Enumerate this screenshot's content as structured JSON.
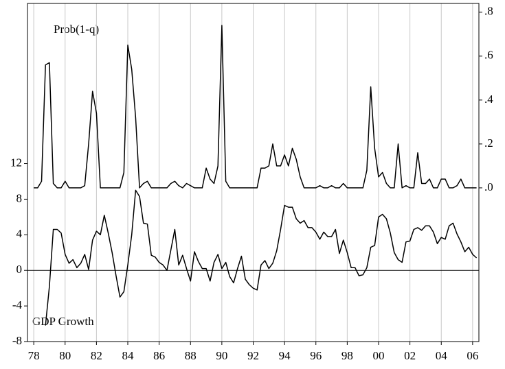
{
  "chart_data": {
    "type": "line",
    "annotations": [
      "Prob(1-q)",
      "GDP Growth"
    ],
    "x": [
      1978,
      1978.25,
      1978.5,
      1978.75,
      1979,
      1979.25,
      1979.5,
      1979.75,
      1980,
      1980.25,
      1980.5,
      1980.75,
      1981,
      1981.25,
      1981.5,
      1981.75,
      1982,
      1982.25,
      1982.5,
      1982.75,
      1983,
      1983.25,
      1983.5,
      1983.75,
      1984,
      1984.25,
      1984.5,
      1984.75,
      1985,
      1985.25,
      1985.5,
      1985.75,
      1986,
      1986.25,
      1986.5,
      1986.75,
      1987,
      1987.25,
      1987.5,
      1987.75,
      1988,
      1988.25,
      1988.5,
      1988.75,
      1989,
      1989.25,
      1989.5,
      1989.75,
      1990,
      1990.25,
      1990.5,
      1990.75,
      1991,
      1991.25,
      1991.5,
      1991.75,
      1992,
      1992.25,
      1992.5,
      1992.75,
      1993,
      1993.25,
      1993.5,
      1993.75,
      1994,
      1994.25,
      1994.5,
      1994.75,
      1995,
      1995.25,
      1995.5,
      1995.75,
      1996,
      1996.25,
      1996.5,
      1996.75,
      1997,
      1997.25,
      1997.5,
      1997.75,
      1998,
      1998.25,
      1998.5,
      1998.75,
      1999,
      1999.25,
      1999.5,
      1999.75,
      2000,
      2000.25,
      2000.5,
      2000.75,
      2001,
      2001.25,
      2001.5,
      2001.75,
      2002,
      2002.25,
      2002.5,
      2002.75,
      2003,
      2003.25,
      2003.5,
      2003.75,
      2004,
      2004.25,
      2004.5,
      2004.75,
      2005,
      2005.25,
      2005.5,
      2005.75,
      2006,
      2006.25
    ],
    "series": [
      {
        "color": "#000000",
        "axis": "y",
        "values": [
          null,
          null,
          null,
          -6.2,
          -1.8,
          4.6,
          4.6,
          4.2,
          1.8,
          0.8,
          1.2,
          0.3,
          0.8,
          1.8,
          0.1,
          3.4,
          4.4,
          4.0,
          6.2,
          4.2,
          2.0,
          -0.6,
          -3.0,
          -2.4,
          0.6,
          4.0,
          9.0,
          8.3,
          5.3,
          5.2,
          1.7,
          1.5,
          0.9,
          0.6,
          0.0,
          2.3,
          4.6,
          0.6,
          1.7,
          0.2,
          -1.2,
          2.1,
          1.0,
          0.2,
          0.2,
          -1.2,
          0.9,
          1.8,
          0.2,
          0.9,
          -0.7,
          -1.4,
          0.2,
          1.6,
          -1.0,
          -1.6,
          -2.0,
          -2.2,
          0.6,
          1.1,
          0.2,
          0.8,
          2.2,
          4.6,
          7.3,
          7.1,
          7.1,
          5.8,
          5.3,
          5.6,
          4.8,
          4.8,
          4.3,
          3.5,
          4.3,
          3.8,
          3.8,
          4.6,
          1.9,
          3.4,
          2.0,
          0.3,
          0.3,
          -0.6,
          -0.5,
          0.3,
          2.6,
          2.8,
          6.0,
          6.3,
          5.8,
          4.2,
          2.0,
          1.2,
          0.9,
          3.2,
          3.3,
          4.6,
          4.8,
          4.5,
          5.0,
          5.0,
          4.3,
          3.0,
          3.7,
          3.5,
          5.0,
          5.3,
          4.1,
          3.2,
          2.1,
          2.6,
          1.8,
          1.4
        ]
      },
      {
        "color": "#000000",
        "axis": "y2",
        "values": [
          0,
          0,
          0.03,
          0.56,
          0.57,
          0.02,
          0,
          0,
          0.03,
          0,
          0,
          0,
          0,
          0.01,
          0.2,
          0.44,
          0.34,
          0,
          0,
          0,
          0,
          0,
          0,
          0.07,
          0.65,
          0.54,
          0.32,
          0,
          0.02,
          0.03,
          0,
          0,
          0,
          0,
          0,
          0.02,
          0.03,
          0.01,
          0,
          0.02,
          0.01,
          0,
          0,
          0,
          0.09,
          0.04,
          0.02,
          0.1,
          0.74,
          0.03,
          0,
          0,
          0,
          0,
          0,
          0,
          0,
          0,
          0.09,
          0.09,
          0.1,
          0.2,
          0.1,
          0.1,
          0.15,
          0.1,
          0.18,
          0.13,
          0.05,
          0,
          0,
          0,
          0,
          0.01,
          0,
          0,
          0.01,
          0,
          0,
          0.02,
          0,
          0,
          0,
          0,
          0,
          0.08,
          0.46,
          0.18,
          0.05,
          0.07,
          0.02,
          0,
          0,
          0.2,
          0,
          0.01,
          0,
          0,
          0.16,
          0.02,
          0.02,
          0.04,
          0,
          0,
          0.04,
          0.04,
          0,
          0,
          0.01,
          0.04,
          0,
          0,
          0,
          0
        ]
      }
    ],
    "xlim": [
      1977.6,
      2006.4
    ],
    "xticks": [
      {
        "value": 1978,
        "label": "78"
      },
      {
        "value": 1980,
        "label": "80"
      },
      {
        "value": 1982,
        "label": "82"
      },
      {
        "value": 1984,
        "label": "84"
      },
      {
        "value": 1986,
        "label": "86"
      },
      {
        "value": 1988,
        "label": "88"
      },
      {
        "value": 1990,
        "label": "90"
      },
      {
        "value": 1992,
        "label": "92"
      },
      {
        "value": 1994,
        "label": "94"
      },
      {
        "value": 1996,
        "label": "96"
      },
      {
        "value": 1998,
        "label": "98"
      },
      {
        "value": 2000,
        "label": "00"
      },
      {
        "value": 2002,
        "label": "02"
      },
      {
        "value": 2004,
        "label": "04"
      },
      {
        "value": 2006,
        "label": "06"
      }
    ],
    "ylim": [
      -8,
      30
    ],
    "yticks": [
      -8,
      -4,
      0,
      4,
      8,
      12
    ],
    "y2lim": [
      -0.7,
      0.84
    ],
    "y2ticks": [
      {
        "value": 0,
        "label": ".0"
      },
      {
        "value": 0.2,
        "label": ".2"
      },
      {
        "value": 0.4,
        "label": ".4"
      },
      {
        "value": 0.6,
        "label": ".6"
      },
      {
        "value": 0.8,
        "label": ".8"
      }
    ],
    "grid": true
  }
}
